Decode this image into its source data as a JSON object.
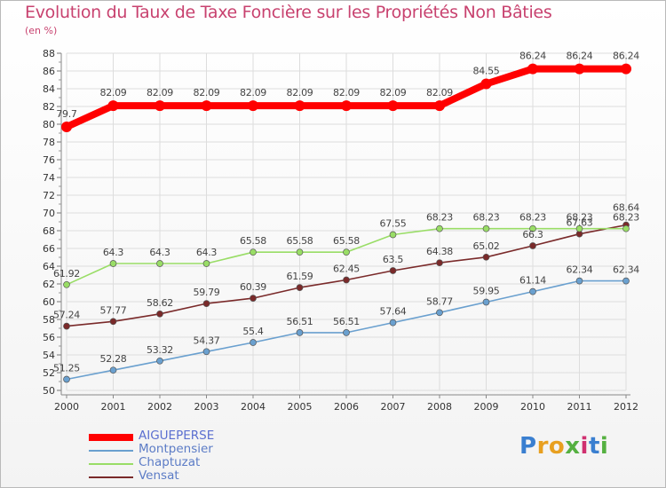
{
  "header": {
    "title": "Evolution du Taux de Taxe Foncière sur les Propriétés Non Bâties",
    "unit": "(en %)"
  },
  "chart_data": {
    "type": "line",
    "x": [
      2000,
      2001,
      2002,
      2003,
      2004,
      2005,
      2006,
      2007,
      2008,
      2009,
      2010,
      2011,
      2012
    ],
    "ylim": [
      50,
      88
    ],
    "yticks": [
      50,
      52,
      54,
      56,
      58,
      60,
      62,
      64,
      66,
      68,
      70,
      72,
      74,
      76,
      78,
      80,
      82,
      84,
      86,
      88
    ],
    "grid": true,
    "legend_position": "bottom-left",
    "series": [
      {
        "name": "AIGUEPERSE",
        "color": "#ff0000",
        "values": [
          79.7,
          82.09,
          82.09,
          82.09,
          82.09,
          82.09,
          82.09,
          82.09,
          82.09,
          84.55,
          86.24,
          86.24,
          86.24
        ],
        "labels": [
          "79.7",
          "82.09",
          "82.09",
          "82.09",
          "82.09",
          "82.09",
          "82.09",
          "82.09",
          "82.09",
          "84.55",
          "86.24",
          "86.24",
          "86.24"
        ]
      },
      {
        "name": "Montpensier",
        "color": "#6aa0cf",
        "values": [
          51.25,
          52.28,
          53.32,
          54.37,
          55.4,
          56.51,
          56.51,
          57.64,
          58.77,
          59.95,
          61.14,
          62.34,
          62.34
        ],
        "labels": [
          "51.25",
          "52.28",
          "53.32",
          "54.37",
          "55.4",
          "56.51",
          "56.51",
          "57.64",
          "58.77",
          "59.95",
          "61.14",
          "62.34",
          "62.34"
        ]
      },
      {
        "name": "Chaptuzat",
        "color": "#99dd66",
        "values": [
          61.92,
          64.3,
          64.3,
          64.3,
          65.58,
          65.58,
          65.58,
          67.55,
          68.23,
          68.23,
          68.23,
          68.23,
          68.23
        ],
        "labels": [
          "61.92",
          "64.3",
          "64.3",
          "64.3",
          "65.58",
          "65.58",
          "65.58",
          "67.55",
          "68.23",
          "68.23",
          "68.23",
          "68.23",
          "68.23"
        ]
      },
      {
        "name": "Vensat",
        "color": "#7a2a2a",
        "values": [
          57.24,
          57.77,
          58.62,
          59.79,
          60.39,
          61.59,
          62.45,
          63.5,
          64.38,
          65.02,
          66.3,
          67.63,
          68.64
        ],
        "labels": [
          "57.24",
          "57.77",
          "58.62",
          "59.79",
          "60.39",
          "61.59",
          "62.45",
          "63.5",
          "64.38",
          "65.02",
          "66.3",
          "67.63",
          "68.64"
        ]
      }
    ]
  },
  "logo": {
    "text": "Proxiti",
    "colors": [
      "#3a7fd0",
      "#e8a020",
      "#e8a020",
      "#55b040",
      "#d03070",
      "#3a7fd0",
      "#55b040"
    ]
  }
}
